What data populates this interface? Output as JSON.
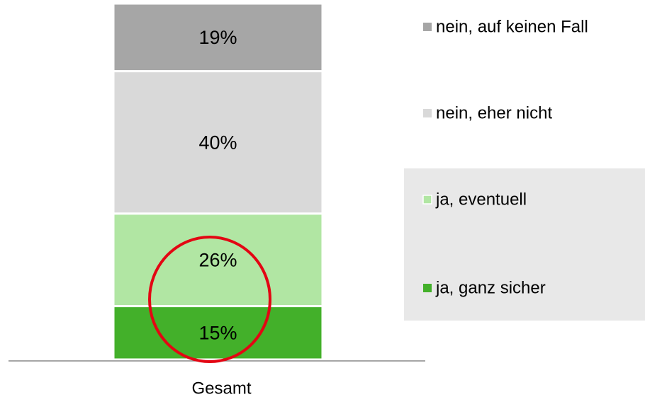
{
  "chart_data": {
    "type": "stacked_bar",
    "categories": [
      "Gesamt"
    ],
    "series": [
      {
        "name": "ja, ganz sicher",
        "color": "#43b02a",
        "values": [
          15
        ],
        "value_labels": [
          "15%"
        ]
      },
      {
        "name": "ja, eventuell",
        "color": "#b1e6a3",
        "values": [
          26
        ],
        "value_labels": [
          "26%"
        ]
      },
      {
        "name": "nein, eher nicht",
        "color": "#d9d9d9",
        "values": [
          40
        ],
        "value_labels": [
          "40%"
        ]
      },
      {
        "name": "nein, auf keinen Fall",
        "color": "#a6a6a6",
        "values": [
          19
        ],
        "value_labels": [
          "19%"
        ]
      }
    ],
    "ylim": [
      0,
      100
    ]
  }
}
